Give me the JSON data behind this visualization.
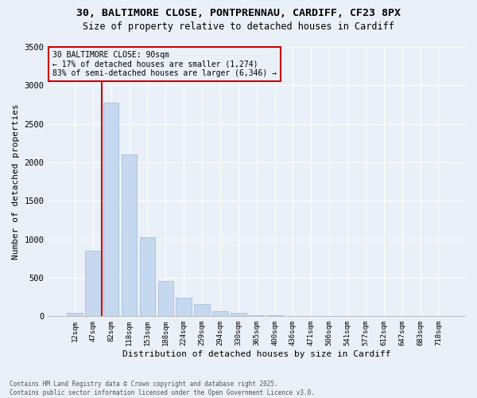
{
  "title_line1": "30, BALTIMORE CLOSE, PONTPRENNAU, CARDIFF, CF23 8PX",
  "title_line2": "Size of property relative to detached houses in Cardiff",
  "xlabel": "Distribution of detached houses by size in Cardiff",
  "ylabel": "Number of detached properties",
  "categories": [
    "12sqm",
    "47sqm",
    "82sqm",
    "118sqm",
    "153sqm",
    "188sqm",
    "224sqm",
    "259sqm",
    "294sqm",
    "330sqm",
    "365sqm",
    "400sqm",
    "436sqm",
    "471sqm",
    "506sqm",
    "541sqm",
    "577sqm",
    "612sqm",
    "647sqm",
    "683sqm",
    "718sqm"
  ],
  "values": [
    50,
    850,
    2780,
    2100,
    1030,
    455,
    245,
    160,
    65,
    45,
    10,
    10,
    5,
    0,
    0,
    0,
    0,
    0,
    0,
    0,
    0
  ],
  "ylim": [
    0,
    3500
  ],
  "yticks": [
    0,
    500,
    1000,
    1500,
    2000,
    2500,
    3000,
    3500
  ],
  "bar_color": "#c5d8f0",
  "bar_edge_color": "#9ab8d8",
  "vline_color": "#cc0000",
  "vline_x_index": 2,
  "annotation_title": "30 BALTIMORE CLOSE: 90sqm",
  "annotation_line2": "← 17% of detached houses are smaller (1,274)",
  "annotation_line3": "83% of semi-detached houses are larger (6,346) →",
  "annotation_box_color": "#cc0000",
  "bg_color": "#eaf0f8",
  "grid_color": "#ffffff",
  "footer_line1": "Contains HM Land Registry data © Crown copyright and database right 2025.",
  "footer_line2": "Contains public sector information licensed under the Open Government Licence v3.0."
}
